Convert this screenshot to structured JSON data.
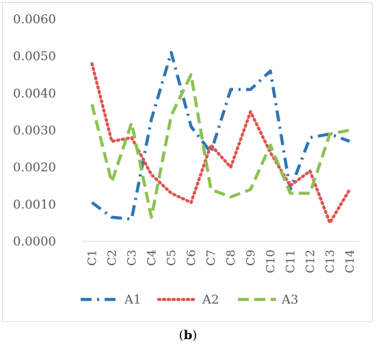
{
  "caption": {
    "open": "(",
    "label": "b",
    "close": ")"
  },
  "chart_data": {
    "type": "line",
    "categories": [
      "C1",
      "C2",
      "C3",
      "C4",
      "C5",
      "C6",
      "C7",
      "C8",
      "C9",
      "C10",
      "C11",
      "C12",
      "C13",
      "C14"
    ],
    "ylim": [
      0,
      0.006
    ],
    "yticks": [
      "0.0000",
      "0.0010",
      "0.0020",
      "0.0030",
      "0.0040",
      "0.0050",
      "0.0060"
    ],
    "ytick_values": [
      0,
      0.001,
      0.002,
      0.003,
      0.004,
      0.005,
      0.006
    ],
    "grid": false,
    "legend": "bottom",
    "series": [
      {
        "name": "A1",
        "color": "#2e75b6",
        "style": "dash-dot",
        "values": [
          0.00105,
          0.00065,
          0.0006,
          0.0033,
          0.0051,
          0.0031,
          0.0024,
          0.0041,
          0.0041,
          0.0046,
          0.0014,
          0.0028,
          0.0029,
          0.0027
        ]
      },
      {
        "name": "A2",
        "color": "#e0524f",
        "style": "dotted",
        "values": [
          0.0048,
          0.0027,
          0.0028,
          0.0018,
          0.0013,
          0.00105,
          0.0026,
          0.002,
          0.0035,
          0.0024,
          0.0015,
          0.0019,
          0.0005,
          0.0014
        ]
      },
      {
        "name": "A3",
        "color": "#8cc152",
        "style": "dashed",
        "values": [
          0.0037,
          0.0016,
          0.0032,
          0.00065,
          0.0034,
          0.0045,
          0.0014,
          0.0012,
          0.0014,
          0.0026,
          0.0013,
          0.0013,
          0.0029,
          0.003
        ]
      }
    ]
  }
}
